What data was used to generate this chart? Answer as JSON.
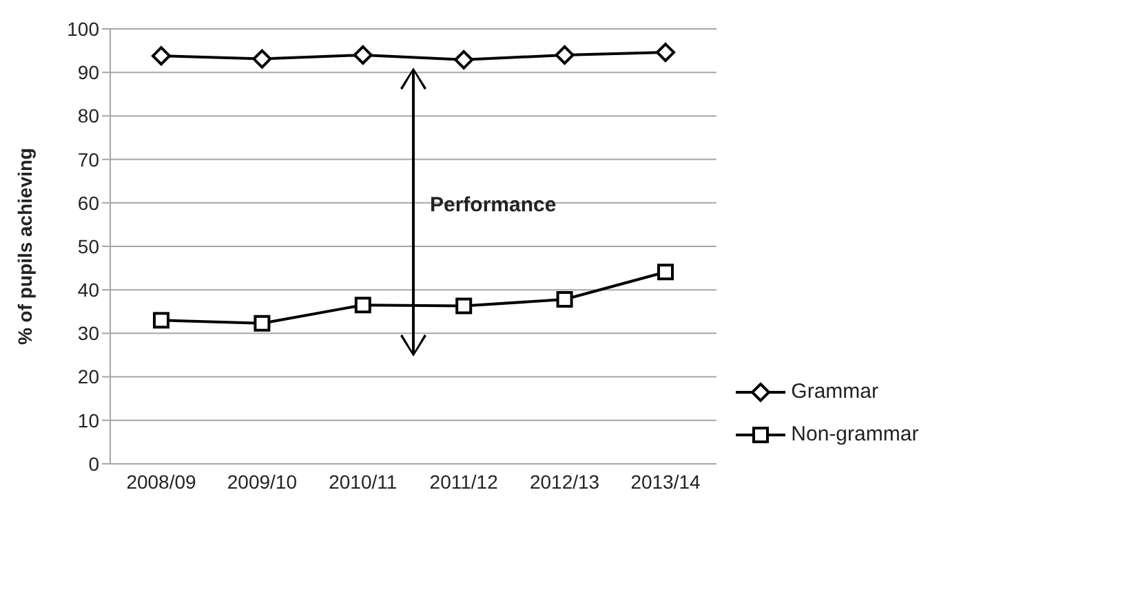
{
  "chart_data": {
    "type": "line",
    "ylabel": "% of pupils achieving",
    "categories": [
      "2008/09",
      "2009/10",
      "2010/11",
      "2011/12",
      "2012/13",
      "2013/14"
    ],
    "series": [
      {
        "name": "Grammar",
        "color": "#000000",
        "marker": "diamond",
        "values": [
          93.8,
          93.1,
          94.0,
          92.9,
          94.0,
          94.6
        ]
      },
      {
        "name": "Non-grammar",
        "color": "#000000",
        "marker": "square",
        "values": [
          33.0,
          32.3,
          36.5,
          36.3,
          37.8,
          44.1
        ]
      }
    ],
    "ylim": [
      0,
      100
    ],
    "yticks": [
      0,
      10,
      20,
      30,
      40,
      50,
      60,
      70,
      80,
      90,
      100
    ],
    "grid": "y",
    "legend": "right",
    "line_style": "solid",
    "annotations": [
      "Performance"
    ]
  }
}
